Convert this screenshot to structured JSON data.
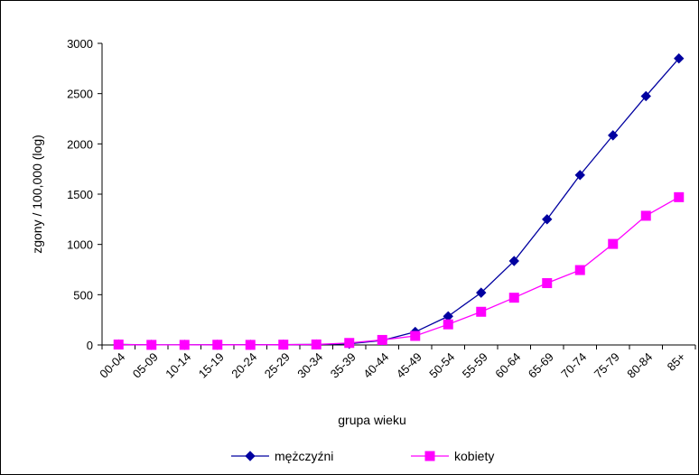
{
  "chart_data": {
    "type": "line",
    "categories": [
      "00-04",
      "05-09",
      "10-14",
      "15-19",
      "20-24",
      "25-29",
      "30-34",
      "35-39",
      "40-44",
      "45-49",
      "50-54",
      "55-59",
      "60-64",
      "65-69",
      "70-74",
      "75-79",
      "80-84",
      "85+"
    ],
    "series": [
      {
        "name": "mężczyźni",
        "color": "#0000A0",
        "marker": "diamond",
        "values": [
          5,
          1,
          1,
          2,
          2,
          3,
          5,
          12,
          45,
          130,
          285,
          520,
          835,
          1250,
          1690,
          2085,
          2475,
          2850
        ]
      },
      {
        "name": "kobiety",
        "color": "#FF00FF",
        "marker": "square",
        "values": [
          4,
          1,
          1,
          2,
          1,
          3,
          5,
          20,
          50,
          90,
          205,
          330,
          470,
          615,
          745,
          1005,
          1285,
          1470
        ]
      }
    ],
    "xlabel": "grupa wieku",
    "ylabel": "zgony / 100,000 (log)",
    "ylim": [
      0,
      3000
    ],
    "yticks": [
      0,
      500,
      1000,
      1500,
      2000,
      2500,
      3000
    ],
    "grid": false,
    "legend": "bottom"
  }
}
